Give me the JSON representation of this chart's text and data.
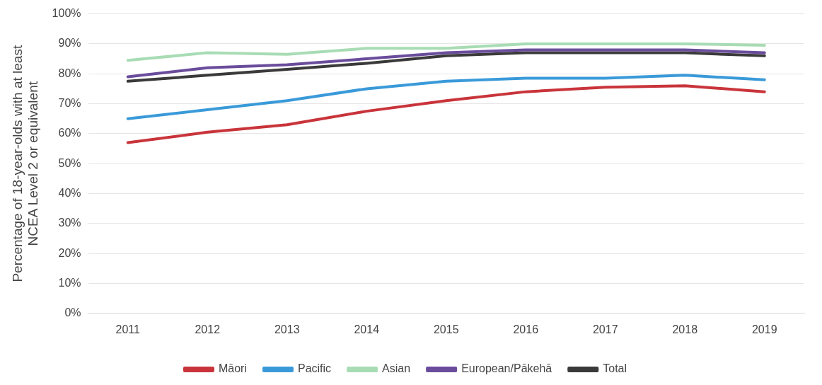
{
  "chart_data": {
    "type": "line",
    "ylabel": "Percentage of 18-year-olds with at least\nNCEA Level 2 or equivalent",
    "categories": [
      "2011",
      "2012",
      "2013",
      "2014",
      "2015",
      "2016",
      "2017",
      "2018",
      "2019"
    ],
    "series": [
      {
        "name": "Māori",
        "color": "#c9343b",
        "values": [
          57,
          60.5,
          63,
          67.5,
          71,
          74,
          75.5,
          76,
          74
        ]
      },
      {
        "name": "Pacific",
        "color": "#3a9ad9",
        "values": [
          65,
          68,
          71,
          75,
          77.5,
          78.5,
          78.5,
          79.5,
          78
        ]
      },
      {
        "name": "Asian",
        "color": "#a8dcb4",
        "values": [
          84.5,
          87,
          86.5,
          88.5,
          88.5,
          90,
          90,
          90,
          89.5
        ]
      },
      {
        "name": "European/Pākehā",
        "color": "#6a4c9c",
        "values": [
          79,
          82,
          83,
          85,
          87,
          88,
          88,
          88,
          87
        ]
      },
      {
        "name": "Total",
        "color": "#3a3a3a",
        "values": [
          77.5,
          79.5,
          81.5,
          83.5,
          86,
          87,
          87,
          87,
          86
        ]
      }
    ],
    "ylim": [
      0,
      100
    ],
    "yticks": [
      {
        "value": 0,
        "label": "0%"
      },
      {
        "value": 10,
        "label": "10%"
      },
      {
        "value": 20,
        "label": "20%"
      },
      {
        "value": 30,
        "label": "30%"
      },
      {
        "value": 40,
        "label": "40%"
      },
      {
        "value": 50,
        "label": "50%"
      },
      {
        "value": 60,
        "label": "60%"
      },
      {
        "value": 70,
        "label": "70%"
      },
      {
        "value": 80,
        "label": "80%"
      },
      {
        "value": 90,
        "label": "90%"
      },
      {
        "value": 100,
        "label": "100%"
      }
    ],
    "grid": "y",
    "legend": "bottom",
    "marker": "none",
    "line_style": "solid"
  }
}
